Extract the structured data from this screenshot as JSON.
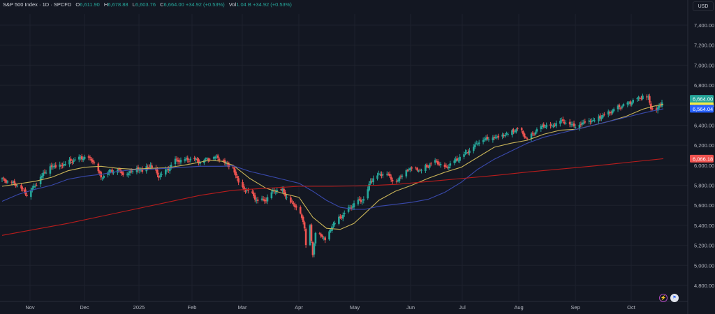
{
  "legend": {
    "symbol": "S&P 500 Index · 1D · SPCFD",
    "open_label": "O",
    "open": "6,611.90",
    "high_label": "H",
    "high": "6,678.88",
    "low_label": "L",
    "low": "6,603.76",
    "close_label": "C",
    "close": "6,664.00",
    "change": "+34.92 (+0.53%)",
    "vol_label": "Vol",
    "vol": "1.04 B",
    "vol_change": "+34.92 (+0.53%)"
  },
  "currency": "USD",
  "icons": [
    "lightning-icon",
    "us-flag-icon"
  ],
  "colors": {
    "background": "#131722",
    "up": "#26a69a",
    "down": "#ef5350",
    "ma_yellow": "#c9b458",
    "ma_blue": "#3949ab",
    "ma_red": "#b71c1c",
    "price_tag_last": "#26a69a",
    "price_tag_ma_fast": "#f2ea4a",
    "price_tag_ma_mid": "#2962ff",
    "price_tag_ma_slow": "#ef5350"
  },
  "chart_data": {
    "type": "candlestick",
    "ylim": [
      4700,
      7600
    ],
    "y_ticks": [
      "7,400.00",
      "7,200.00",
      "7,000.00",
      "6,800.00",
      "6,600.00",
      "6,400.00",
      "6,200.00",
      "6,000.00",
      "5,800.00",
      "5,600.00",
      "5,400.00",
      "5,200.00",
      "5,000.00",
      "4,800.00"
    ],
    "x_labels": [
      "Nov",
      "Dec",
      "2025",
      "Feb",
      "Mar",
      "Apr",
      "May",
      "Jun",
      "Jul",
      "Aug",
      "Sep",
      "Oct"
    ],
    "price_tags": [
      {
        "label": "6,664.00",
        "value": 6664,
        "color_key": "price_tag_last"
      },
      {
        "label": "6,564.04",
        "value": 6564,
        "color_key": "price_tag_ma_mid"
      },
      {
        "label": "6,066.18",
        "value": 6066,
        "color_key": "price_tag_ma_slow"
      }
    ],
    "close_anchors": [
      [
        0,
        5860
      ],
      [
        6,
        5830
      ],
      [
        12,
        5800
      ],
      [
        18,
        5710
      ],
      [
        24,
        5800
      ],
      [
        30,
        5920
      ],
      [
        36,
        5990
      ],
      [
        42,
        5990
      ],
      [
        48,
        6030
      ],
      [
        54,
        6060
      ],
      [
        60,
        6080
      ],
      [
        66,
        6050
      ],
      [
        72,
        5880
      ],
      [
        78,
        5940
      ],
      [
        84,
        5960
      ],
      [
        90,
        5900
      ],
      [
        96,
        5970
      ],
      [
        102,
        5950
      ],
      [
        108,
        6000
      ],
      [
        114,
        5890
      ],
      [
        120,
        5950
      ],
      [
        126,
        6050
      ],
      [
        132,
        6050
      ],
      [
        138,
        6070
      ],
      [
        144,
        6040
      ],
      [
        150,
        6070
      ],
      [
        156,
        6090
      ],
      [
        160,
        6050
      ],
      [
        168,
        5970
      ],
      [
        174,
        5770
      ],
      [
        180,
        5740
      ],
      [
        186,
        5640
      ],
      [
        192,
        5660
      ],
      [
        198,
        5750
      ],
      [
        204,
        5750
      ],
      [
        210,
        5630
      ],
      [
        216,
        5570
      ],
      [
        220,
        5380
      ],
      [
        222,
        5060
      ],
      [
        224,
        5400
      ],
      [
        226,
        5100
      ],
      [
        228,
        5340
      ],
      [
        232,
        5300
      ],
      [
        236,
        5250
      ],
      [
        240,
        5400
      ],
      [
        246,
        5480
      ],
      [
        252,
        5560
      ],
      [
        258,
        5640
      ],
      [
        264,
        5660
      ],
      [
        268,
        5850
      ],
      [
        274,
        5910
      ],
      [
        280,
        5920
      ],
      [
        286,
        5820
      ],
      [
        292,
        5930
      ],
      [
        298,
        5980
      ],
      [
        304,
        5950
      ],
      [
        310,
        6000
      ],
      [
        316,
        6040
      ],
      [
        322,
        5970
      ],
      [
        328,
        6030
      ],
      [
        334,
        6090
      ],
      [
        340,
        6150
      ],
      [
        346,
        6230
      ],
      [
        352,
        6270
      ],
      [
        358,
        6280
      ],
      [
        364,
        6300
      ],
      [
        370,
        6330
      ],
      [
        376,
        6370
      ],
      [
        382,
        6260
      ],
      [
        388,
        6340
      ],
      [
        394,
        6400
      ],
      [
        400,
        6390
      ],
      [
        406,
        6450
      ],
      [
        412,
        6420
      ],
      [
        418,
        6390
      ],
      [
        424,
        6440
      ],
      [
        430,
        6450
      ],
      [
        436,
        6490
      ],
      [
        442,
        6530
      ],
      [
        448,
        6580
      ],
      [
        454,
        6610
      ],
      [
        460,
        6650
      ],
      [
        466,
        6690
      ],
      [
        470,
        6680
      ],
      [
        472,
        6580
      ],
      [
        474,
        6540
      ],
      [
        476,
        6560
      ],
      [
        479,
        6610
      ],
      [
        481,
        6664
      ]
    ],
    "moving_averages": [
      {
        "period": "fast",
        "color_key": "ma_yellow",
        "points": [
          [
            0,
            5790
          ],
          [
            12,
            5815
          ],
          [
            24,
            5840
          ],
          [
            36,
            5880
          ],
          [
            48,
            5945
          ],
          [
            60,
            5980
          ],
          [
            72,
            5990
          ],
          [
            84,
            5970
          ],
          [
            96,
            5960
          ],
          [
            108,
            5970
          ],
          [
            120,
            5975
          ],
          [
            132,
            6000
          ],
          [
            144,
            6030
          ],
          [
            150,
            6050
          ],
          [
            160,
            6040
          ],
          [
            168,
            6000
          ],
          [
            180,
            5870
          ],
          [
            192,
            5770
          ],
          [
            204,
            5720
          ],
          [
            216,
            5680
          ],
          [
            220,
            5600
          ],
          [
            226,
            5480
          ],
          [
            236,
            5370
          ],
          [
            246,
            5360
          ],
          [
            256,
            5420
          ],
          [
            264,
            5520
          ],
          [
            274,
            5650
          ],
          [
            286,
            5740
          ],
          [
            298,
            5800
          ],
          [
            310,
            5870
          ],
          [
            322,
            5930
          ],
          [
            334,
            5980
          ],
          [
            346,
            6080
          ],
          [
            358,
            6180
          ],
          [
            370,
            6220
          ],
          [
            382,
            6250
          ],
          [
            394,
            6310
          ],
          [
            406,
            6350
          ],
          [
            418,
            6360
          ],
          [
            430,
            6400
          ],
          [
            442,
            6440
          ],
          [
            454,
            6490
          ],
          [
            466,
            6560
          ],
          [
            474,
            6590
          ],
          [
            481,
            6610
          ]
        ]
      },
      {
        "period": "mid",
        "color_key": "ma_blue",
        "points": [
          [
            0,
            5640
          ],
          [
            12,
            5710
          ],
          [
            24,
            5760
          ],
          [
            36,
            5800
          ],
          [
            48,
            5860
          ],
          [
            60,
            5890
          ],
          [
            72,
            5910
          ],
          [
            84,
            5940
          ],
          [
            96,
            5955
          ],
          [
            108,
            5960
          ],
          [
            120,
            5970
          ],
          [
            132,
            5980
          ],
          [
            144,
            5990
          ],
          [
            160,
            5990
          ],
          [
            168,
            5995
          ],
          [
            180,
            5940
          ],
          [
            192,
            5900
          ],
          [
            204,
            5860
          ],
          [
            216,
            5820
          ],
          [
            226,
            5740
          ],
          [
            236,
            5650
          ],
          [
            246,
            5580
          ],
          [
            256,
            5560
          ],
          [
            264,
            5560
          ],
          [
            274,
            5590
          ],
          [
            286,
            5610
          ],
          [
            298,
            5630
          ],
          [
            310,
            5660
          ],
          [
            322,
            5730
          ],
          [
            334,
            5830
          ],
          [
            346,
            5960
          ],
          [
            358,
            6060
          ],
          [
            370,
            6140
          ],
          [
            382,
            6220
          ],
          [
            394,
            6280
          ],
          [
            406,
            6320
          ],
          [
            418,
            6360
          ],
          [
            430,
            6400
          ],
          [
            442,
            6440
          ],
          [
            454,
            6480
          ],
          [
            466,
            6520
          ],
          [
            474,
            6545
          ],
          [
            481,
            6564
          ]
        ]
      },
      {
        "period": "slow",
        "color_key": "ma_red",
        "points": [
          [
            0,
            5300
          ],
          [
            24,
            5360
          ],
          [
            48,
            5420
          ],
          [
            72,
            5490
          ],
          [
            96,
            5560
          ],
          [
            120,
            5630
          ],
          [
            144,
            5700
          ],
          [
            168,
            5750
          ],
          [
            192,
            5770
          ],
          [
            216,
            5790
          ],
          [
            240,
            5790
          ],
          [
            264,
            5795
          ],
          [
            288,
            5810
          ],
          [
            312,
            5840
          ],
          [
            336,
            5870
          ],
          [
            360,
            5900
          ],
          [
            384,
            5935
          ],
          [
            408,
            5965
          ],
          [
            432,
            5995
          ],
          [
            456,
            6030
          ],
          [
            481,
            6066
          ]
        ]
      }
    ]
  }
}
